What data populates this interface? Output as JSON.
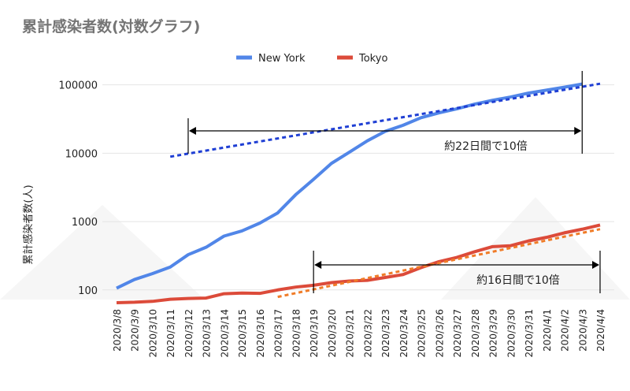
{
  "chart_data": {
    "type": "line",
    "title": "累計感染者数(対数グラフ)",
    "y_label": "累計感染者数(人)",
    "log_scale": true,
    "legend": "top",
    "categories": [
      "2020/3/8",
      "2020/3/9",
      "2020/3/10",
      "2020/3/11",
      "2020/3/12",
      "2020/3/13",
      "2020/3/14",
      "2020/3/15",
      "2020/3/16",
      "2020/3/17",
      "2020/3/18",
      "2020/3/19",
      "2020/3/20",
      "2020/3/21",
      "2020/3/22",
      "2020/3/23",
      "2020/3/24",
      "2020/3/25",
      "2020/3/26",
      "2020/3/27",
      "2020/3/28",
      "2020/3/29",
      "2020/3/30",
      "2020/3/31",
      "2020/4/1",
      "2020/4/2",
      "2020/4/3",
      "2020/4/4"
    ],
    "series": [
      {
        "name": "New York",
        "color": "#5186e8",
        "values": [
          106,
          142,
          173,
          216,
          328,
          421,
          613,
          729,
          950,
          1339,
          2469,
          4152,
          7102,
          10356,
          15168,
          20875,
          25665,
          33066,
          38987,
          44635,
          52318,
          59513,
          66497,
          75795,
          83712,
          92381,
          102863,
          null
        ]
      },
      {
        "name": "Tokyo",
        "color": "#dc4b3a",
        "values": [
          65,
          66,
          68,
          73,
          75,
          76,
          88,
          90,
          89,
          100,
          110,
          117,
          128,
          135,
          138,
          152,
          168,
          212,
          259,
          299,
          362,
          430,
          443,
          521,
          587,
          684,
          773,
          891
        ]
      }
    ],
    "trendlines": [
      {
        "color": "#1f3fd4",
        "from": "2020/3/11",
        "to": "2020/4/4",
        "values": [
          8900,
          104000
        ]
      },
      {
        "color": "#f07c28",
        "from": "2020/3/17",
        "to": "2020/4/4",
        "values": [
          79,
          775
        ]
      }
    ],
    "annotations": [
      {
        "text": "約22日間で10倍",
        "from": "2020/3/12",
        "to": "2020/4/3"
      },
      {
        "text": "約16日間で10倍",
        "from": "2020/3/19",
        "to": "2020/4/4"
      }
    ],
    "ylim": [
      65,
      140000
    ],
    "yticks": [
      100,
      1000,
      10000,
      100000
    ],
    "grid": true
  }
}
